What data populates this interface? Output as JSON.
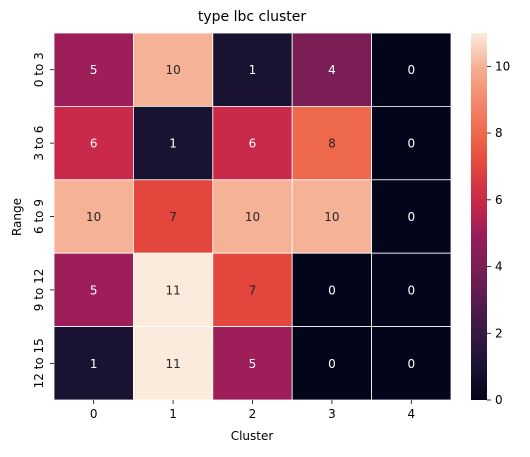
{
  "chart_data": {
    "type": "heatmap",
    "title": "type lbc cluster",
    "xlabel": "Cluster",
    "ylabel": "Range",
    "x_categories": [
      "0",
      "1",
      "2",
      "3",
      "4"
    ],
    "y_categories": [
      "0 to 3",
      "3 to 6",
      "6 to 9",
      "9 to 12",
      "12 to 15"
    ],
    "values": [
      [
        5,
        10,
        1,
        4,
        0
      ],
      [
        6,
        1,
        6,
        8,
        0
      ],
      [
        10,
        7,
        10,
        10,
        0
      ],
      [
        5,
        11,
        7,
        0,
        0
      ],
      [
        1,
        11,
        5,
        0,
        0
      ]
    ],
    "vmin": 0,
    "vmax": 11,
    "colorbar_ticks": [
      0,
      2,
      4,
      6,
      8,
      10
    ],
    "colormap": "rocket",
    "annotations": true
  }
}
